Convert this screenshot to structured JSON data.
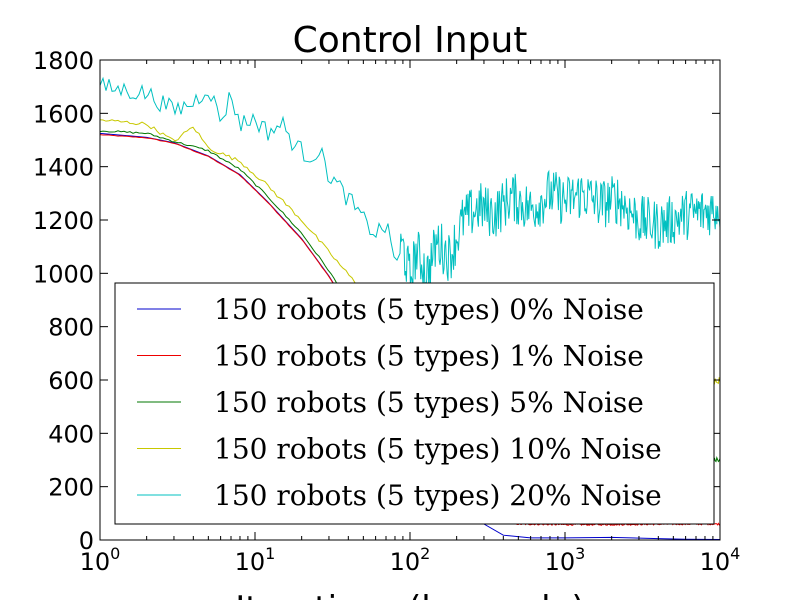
{
  "chart_data": {
    "type": "line",
    "title": "Control Input",
    "xlabel": "Iterations (log scale)",
    "ylabel": "",
    "x_scale": "log",
    "xlim": [
      1,
      10000
    ],
    "ylim": [
      0,
      1800
    ],
    "grid": false,
    "legend_placement": "lower-center",
    "x_ticks": [
      {
        "base": "10",
        "exp": "0",
        "value": 1
      },
      {
        "base": "10",
        "exp": "1",
        "value": 10
      },
      {
        "base": "10",
        "exp": "2",
        "value": 100
      },
      {
        "base": "10",
        "exp": "3",
        "value": 1000
      },
      {
        "base": "10",
        "exp": "4",
        "value": 10000
      }
    ],
    "y_ticks": [
      "0",
      "200",
      "400",
      "600",
      "800",
      "1000",
      "1200",
      "1400",
      "1600",
      "1800"
    ],
    "series": [
      {
        "name": "150 robots (5 types) 0% Noise",
        "color": "#0000cc",
        "points": [
          [
            1,
            1525
          ],
          [
            2,
            1510
          ],
          [
            3,
            1490
          ],
          [
            5,
            1440
          ],
          [
            8,
            1370
          ],
          [
            12,
            1270
          ],
          [
            20,
            1130
          ],
          [
            30,
            990
          ],
          [
            50,
            780
          ],
          [
            80,
            560
          ],
          [
            120,
            360
          ],
          [
            200,
            160
          ],
          [
            300,
            60
          ],
          [
            400,
            18
          ],
          [
            600,
            8
          ],
          [
            1000,
            8
          ],
          [
            2000,
            10
          ],
          [
            4000,
            5
          ],
          [
            6000,
            3
          ],
          [
            10000,
            2
          ]
        ]
      },
      {
        "name": "150 robots (5 types) 1% Noise",
        "color": "#ee0000",
        "points": [
          [
            1,
            1520
          ],
          [
            2,
            1508
          ],
          [
            3,
            1488
          ],
          [
            5,
            1438
          ],
          [
            8,
            1368
          ],
          [
            12,
            1268
          ],
          [
            20,
            1128
          ],
          [
            30,
            988
          ],
          [
            50,
            780
          ],
          [
            80,
            560
          ],
          [
            120,
            365
          ],
          [
            200,
            170
          ],
          [
            300,
            80
          ],
          [
            500,
            60
          ],
          [
            1000,
            58
          ],
          [
            2000,
            58
          ],
          [
            5000,
            60
          ],
          [
            10000,
            60
          ]
        ]
      },
      {
        "name": "150 robots (5 types) 5% Noise",
        "color": "#007700",
        "points": [
          [
            1,
            1535
          ],
          [
            2,
            1525
          ],
          [
            3,
            1495
          ],
          [
            5,
            1460
          ],
          [
            8,
            1390
          ],
          [
            12,
            1290
          ],
          [
            20,
            1150
          ],
          [
            30,
            1010
          ],
          [
            50,
            800
          ],
          [
            80,
            600
          ],
          [
            120,
            420
          ],
          [
            200,
            320
          ],
          [
            400,
            300
          ],
          [
            1000,
            300
          ],
          [
            3000,
            295
          ],
          [
            7000,
            300
          ],
          [
            10000,
            300
          ]
        ]
      },
      {
        "name": "150 robots (5 types) 10% Noise",
        "color": "#c8c800",
        "points": [
          [
            1,
            1575
          ],
          [
            2,
            1560
          ],
          [
            3,
            1495
          ],
          [
            4,
            1550
          ],
          [
            5,
            1470
          ],
          [
            8,
            1420
          ],
          [
            12,
            1330
          ],
          [
            20,
            1200
          ],
          [
            30,
            1080
          ],
          [
            50,
            930
          ],
          [
            80,
            760
          ],
          [
            120,
            650
          ],
          [
            200,
            610
          ],
          [
            400,
            600
          ],
          [
            1000,
            600
          ],
          [
            3000,
            600
          ],
          [
            10000,
            600
          ]
        ]
      },
      {
        "name": "150 robots (5 types) 20% Noise",
        "color": "#00c0c0",
        "points": [
          [
            1,
            1700
          ],
          [
            2,
            1675
          ],
          [
            3,
            1610
          ],
          [
            4,
            1640
          ],
          [
            5,
            1700
          ],
          [
            6,
            1570
          ],
          [
            7,
            1670
          ],
          [
            8,
            1560
          ],
          [
            10,
            1580
          ],
          [
            12,
            1530
          ],
          [
            15,
            1560
          ],
          [
            18,
            1480
          ],
          [
            22,
            1440
          ],
          [
            26,
            1460
          ],
          [
            30,
            1370
          ],
          [
            40,
            1280
          ],
          [
            50,
            1200
          ],
          [
            60,
            1150
          ],
          [
            70,
            1180
          ],
          [
            80,
            1050
          ],
          [
            90,
            1100
          ],
          [
            100,
            980
          ],
          [
            110,
            1080
          ],
          [
            130,
            1000
          ],
          [
            150,
            1120
          ],
          [
            180,
            1060
          ],
          [
            220,
            1200
          ],
          [
            280,
            1250
          ],
          [
            350,
            1220
          ],
          [
            450,
            1290
          ],
          [
            600,
            1240
          ],
          [
            800,
            1300
          ],
          [
            1000,
            1270
          ],
          [
            1300,
            1300
          ],
          [
            1700,
            1260
          ],
          [
            2200,
            1280
          ],
          [
            3000,
            1200
          ],
          [
            4000,
            1180
          ],
          [
            5000,
            1200
          ],
          [
            6000,
            1220
          ],
          [
            8000,
            1230
          ],
          [
            10000,
            1250
          ]
        ]
      }
    ]
  }
}
